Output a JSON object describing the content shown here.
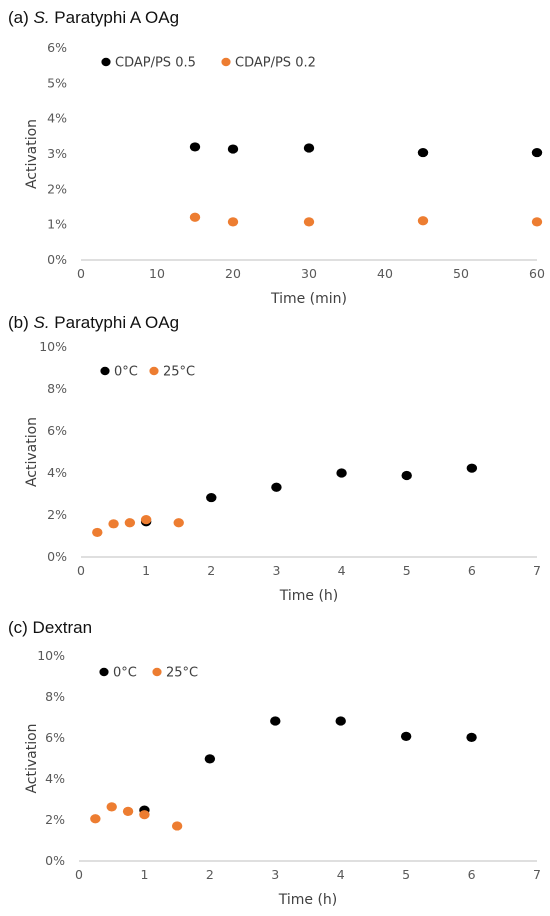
{
  "colors": {
    "series_a": "#000000",
    "series_b": "#ED7D31",
    "axis": "#BFBFBF"
  },
  "chart_data": [
    {
      "type": "scatter",
      "label_prefix": "(a) ",
      "label_italic": "S.",
      "label_rest": " Paratyphi A OAg",
      "xlabel": "Time (min)",
      "ylabel": "Activation",
      "xlim": [
        0,
        60
      ],
      "ylim": [
        0,
        0.06
      ],
      "x_ticks": [
        0,
        10,
        20,
        30,
        40,
        50,
        60
      ],
      "y_ticks": [
        0,
        0.01,
        0.02,
        0.03,
        0.04,
        0.05,
        0.06
      ],
      "x_tick_labels": [
        "0",
        "10",
        "20",
        "30",
        "40",
        "50",
        "60"
      ],
      "y_tick_labels": [
        "0%",
        "1%",
        "2%",
        "3%",
        "4%",
        "5%",
        "6%"
      ],
      "legend": "top-left",
      "grid": false,
      "series": [
        {
          "name": "CDAP/PS 0.5",
          "points": [
            [
              15,
              0.032
            ],
            [
              20,
              0.0314
            ],
            [
              30,
              0.0317
            ],
            [
              45,
              0.0304
            ],
            [
              60,
              0.0304
            ]
          ]
        },
        {
          "name": "CDAP/PS 0.2",
          "points": [
            [
              15,
              0.0121
            ],
            [
              20,
              0.0108
            ],
            [
              30,
              0.0108
            ],
            [
              45,
              0.0111
            ],
            [
              60,
              0.0108
            ]
          ]
        }
      ]
    },
    {
      "type": "scatter",
      "label_prefix": "(b) ",
      "label_italic": "S.",
      "label_rest": " Paratyphi A OAg",
      "xlabel": "Time (h)",
      "ylabel": "Activation",
      "xlim": [
        0,
        7
      ],
      "ylim": [
        0,
        0.1
      ],
      "x_ticks": [
        0,
        1,
        2,
        3,
        4,
        5,
        6,
        7
      ],
      "y_ticks": [
        0,
        0.02,
        0.04,
        0.06,
        0.08,
        0.1
      ],
      "x_tick_labels": [
        "0",
        "1",
        "2",
        "3",
        "4",
        "5",
        "6",
        "7"
      ],
      "y_tick_labels": [
        "0%",
        "2%",
        "4%",
        "6%",
        "8%",
        "10%"
      ],
      "legend": "top-left",
      "grid": false,
      "series": [
        {
          "name": "0°C",
          "points": [
            [
              1,
              0.0168
            ],
            [
              2,
              0.0283
            ],
            [
              3,
              0.0332
            ],
            [
              4,
              0.04
            ],
            [
              5,
              0.0388
            ],
            [
              6,
              0.0423
            ]
          ]
        },
        {
          "name": "25°C",
          "points": [
            [
              0.25,
              0.0117
            ],
            [
              0.5,
              0.0158
            ],
            [
              0.75,
              0.0163
            ],
            [
              1,
              0.0178
            ],
            [
              1.5,
              0.0163
            ]
          ]
        }
      ]
    },
    {
      "type": "scatter",
      "label_prefix": "(c) Dextran",
      "label_italic": "",
      "label_rest": "",
      "xlabel": "Time (h)",
      "ylabel": "Activation",
      "xlim": [
        0,
        7
      ],
      "ylim": [
        0,
        0.1
      ],
      "x_ticks": [
        0,
        1,
        2,
        3,
        4,
        5,
        6,
        7
      ],
      "y_ticks": [
        0,
        0.02,
        0.04,
        0.06,
        0.08,
        0.1
      ],
      "x_tick_labels": [
        "0",
        "1",
        "2",
        "3",
        "4",
        "5",
        "6",
        "7"
      ],
      "y_tick_labels": [
        "0%",
        "2%",
        "4%",
        "6%",
        "8%",
        "10%"
      ],
      "legend": "top-left",
      "grid": false,
      "series": [
        {
          "name": "0°C",
          "points": [
            [
              1,
              0.0248
            ],
            [
              2,
              0.0498
            ],
            [
              3,
              0.0683
            ],
            [
              4,
              0.0683
            ],
            [
              5,
              0.0608
            ],
            [
              6,
              0.0603
            ]
          ]
        },
        {
          "name": "25°C",
          "points": [
            [
              0.25,
              0.0206
            ],
            [
              0.5,
              0.0264
            ],
            [
              0.75,
              0.0242
            ],
            [
              1,
              0.0226
            ],
            [
              1.5,
              0.0171
            ]
          ]
        }
      ]
    }
  ]
}
